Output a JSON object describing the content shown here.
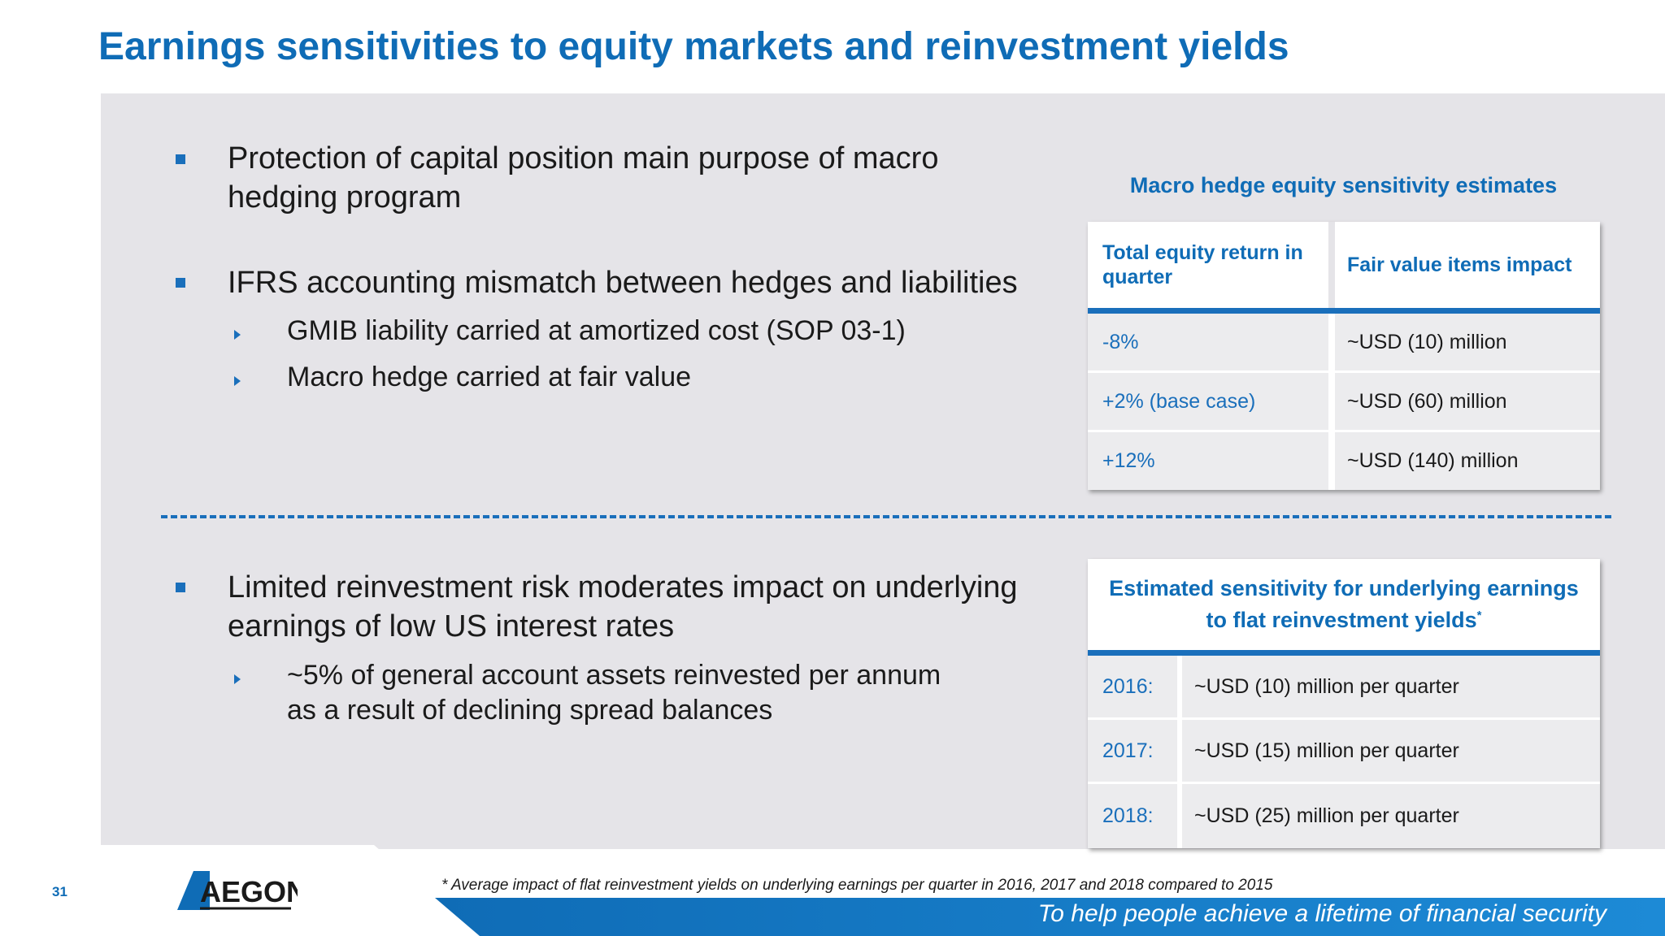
{
  "title": "Earnings sensitivities to equity markets and reinvestment yields",
  "bullets": {
    "b1": "Protection of capital position main purpose of macro hedging program",
    "b1_l1": "Protection of capital position main purpose of macro",
    "b1_l2": "hedging program",
    "b2": "IFRS accounting mismatch between hedges and liabilities",
    "b2_sub1": "GMIB liability carried at amortized cost (SOP 03-1)",
    "b2_sub2": "Macro hedge carried at fair value",
    "b3_l1": "Limited reinvestment risk moderates impact on underlying",
    "b3_l2": "earnings of low US interest rates",
    "b3_sub1_l1": "~5% of general account assets reinvested per annum",
    "b3_sub1_l2": "as a result of declining spread balances"
  },
  "table1": {
    "caption": "Macro hedge equity sensitivity estimates",
    "header_col1": "Total equity return in quarter",
    "header_col2": "Fair value items impact",
    "rows": [
      {
        "col1": "-8%",
        "col2": "~USD (10) million"
      },
      {
        "col1": "+2% (base case)",
        "col2": "~USD (60) million"
      },
      {
        "col1": "+12%",
        "col2": "~USD (140) million"
      }
    ]
  },
  "table2": {
    "title_l1": "Estimated sensitivity for underlying earnings",
    "title_l2": "to flat reinvestment yields",
    "title_mark": "*",
    "rows": [
      {
        "year": "2016:",
        "value": "~USD (10) million per quarter"
      },
      {
        "year": "2017:",
        "value": "~USD (15) million per quarter"
      },
      {
        "year": "2018:",
        "value": "~USD (25) million per quarter"
      }
    ]
  },
  "footnote": "* Average impact of flat reinvestment yields on underlying earnings per quarter in 2016, 2017 and 2018 compared to 2015",
  "page_number": "31",
  "logo_text": "AEGON",
  "tagline": "To help people achieve a lifetime of financial security",
  "colors": {
    "brand_blue": "#0f6cb6",
    "accent_blue": "#1a6fbb",
    "panel_gray": "#e5e4e8"
  }
}
